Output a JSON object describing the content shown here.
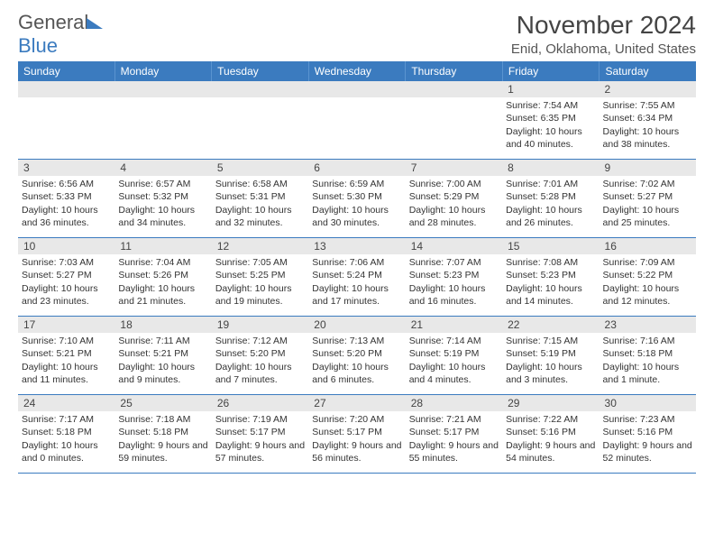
{
  "logo": {
    "part1": "General",
    "part2": "Blue"
  },
  "header": {
    "month": "November 2024",
    "location": "Enid, Oklahoma, United States"
  },
  "weekdays": [
    "Sunday",
    "Monday",
    "Tuesday",
    "Wednesday",
    "Thursday",
    "Friday",
    "Saturday"
  ],
  "colors": {
    "header_bg": "#3b7bbf",
    "daynum_bg": "#e8e8e8",
    "week_divider": "#3b7bbf"
  },
  "weeks": [
    [
      {
        "n": "",
        "sunrise": "",
        "sunset": "",
        "daylight": ""
      },
      {
        "n": "",
        "sunrise": "",
        "sunset": "",
        "daylight": ""
      },
      {
        "n": "",
        "sunrise": "",
        "sunset": "",
        "daylight": ""
      },
      {
        "n": "",
        "sunrise": "",
        "sunset": "",
        "daylight": ""
      },
      {
        "n": "",
        "sunrise": "",
        "sunset": "",
        "daylight": ""
      },
      {
        "n": "1",
        "sunrise": "Sunrise: 7:54 AM",
        "sunset": "Sunset: 6:35 PM",
        "daylight": "Daylight: 10 hours and 40 minutes."
      },
      {
        "n": "2",
        "sunrise": "Sunrise: 7:55 AM",
        "sunset": "Sunset: 6:34 PM",
        "daylight": "Daylight: 10 hours and 38 minutes."
      }
    ],
    [
      {
        "n": "3",
        "sunrise": "Sunrise: 6:56 AM",
        "sunset": "Sunset: 5:33 PM",
        "daylight": "Daylight: 10 hours and 36 minutes."
      },
      {
        "n": "4",
        "sunrise": "Sunrise: 6:57 AM",
        "sunset": "Sunset: 5:32 PM",
        "daylight": "Daylight: 10 hours and 34 minutes."
      },
      {
        "n": "5",
        "sunrise": "Sunrise: 6:58 AM",
        "sunset": "Sunset: 5:31 PM",
        "daylight": "Daylight: 10 hours and 32 minutes."
      },
      {
        "n": "6",
        "sunrise": "Sunrise: 6:59 AM",
        "sunset": "Sunset: 5:30 PM",
        "daylight": "Daylight: 10 hours and 30 minutes."
      },
      {
        "n": "7",
        "sunrise": "Sunrise: 7:00 AM",
        "sunset": "Sunset: 5:29 PM",
        "daylight": "Daylight: 10 hours and 28 minutes."
      },
      {
        "n": "8",
        "sunrise": "Sunrise: 7:01 AM",
        "sunset": "Sunset: 5:28 PM",
        "daylight": "Daylight: 10 hours and 26 minutes."
      },
      {
        "n": "9",
        "sunrise": "Sunrise: 7:02 AM",
        "sunset": "Sunset: 5:27 PM",
        "daylight": "Daylight: 10 hours and 25 minutes."
      }
    ],
    [
      {
        "n": "10",
        "sunrise": "Sunrise: 7:03 AM",
        "sunset": "Sunset: 5:27 PM",
        "daylight": "Daylight: 10 hours and 23 minutes."
      },
      {
        "n": "11",
        "sunrise": "Sunrise: 7:04 AM",
        "sunset": "Sunset: 5:26 PM",
        "daylight": "Daylight: 10 hours and 21 minutes."
      },
      {
        "n": "12",
        "sunrise": "Sunrise: 7:05 AM",
        "sunset": "Sunset: 5:25 PM",
        "daylight": "Daylight: 10 hours and 19 minutes."
      },
      {
        "n": "13",
        "sunrise": "Sunrise: 7:06 AM",
        "sunset": "Sunset: 5:24 PM",
        "daylight": "Daylight: 10 hours and 17 minutes."
      },
      {
        "n": "14",
        "sunrise": "Sunrise: 7:07 AM",
        "sunset": "Sunset: 5:23 PM",
        "daylight": "Daylight: 10 hours and 16 minutes."
      },
      {
        "n": "15",
        "sunrise": "Sunrise: 7:08 AM",
        "sunset": "Sunset: 5:23 PM",
        "daylight": "Daylight: 10 hours and 14 minutes."
      },
      {
        "n": "16",
        "sunrise": "Sunrise: 7:09 AM",
        "sunset": "Sunset: 5:22 PM",
        "daylight": "Daylight: 10 hours and 12 minutes."
      }
    ],
    [
      {
        "n": "17",
        "sunrise": "Sunrise: 7:10 AM",
        "sunset": "Sunset: 5:21 PM",
        "daylight": "Daylight: 10 hours and 11 minutes."
      },
      {
        "n": "18",
        "sunrise": "Sunrise: 7:11 AM",
        "sunset": "Sunset: 5:21 PM",
        "daylight": "Daylight: 10 hours and 9 minutes."
      },
      {
        "n": "19",
        "sunrise": "Sunrise: 7:12 AM",
        "sunset": "Sunset: 5:20 PM",
        "daylight": "Daylight: 10 hours and 7 minutes."
      },
      {
        "n": "20",
        "sunrise": "Sunrise: 7:13 AM",
        "sunset": "Sunset: 5:20 PM",
        "daylight": "Daylight: 10 hours and 6 minutes."
      },
      {
        "n": "21",
        "sunrise": "Sunrise: 7:14 AM",
        "sunset": "Sunset: 5:19 PM",
        "daylight": "Daylight: 10 hours and 4 minutes."
      },
      {
        "n": "22",
        "sunrise": "Sunrise: 7:15 AM",
        "sunset": "Sunset: 5:19 PM",
        "daylight": "Daylight: 10 hours and 3 minutes."
      },
      {
        "n": "23",
        "sunrise": "Sunrise: 7:16 AM",
        "sunset": "Sunset: 5:18 PM",
        "daylight": "Daylight: 10 hours and 1 minute."
      }
    ],
    [
      {
        "n": "24",
        "sunrise": "Sunrise: 7:17 AM",
        "sunset": "Sunset: 5:18 PM",
        "daylight": "Daylight: 10 hours and 0 minutes."
      },
      {
        "n": "25",
        "sunrise": "Sunrise: 7:18 AM",
        "sunset": "Sunset: 5:18 PM",
        "daylight": "Daylight: 9 hours and 59 minutes."
      },
      {
        "n": "26",
        "sunrise": "Sunrise: 7:19 AM",
        "sunset": "Sunset: 5:17 PM",
        "daylight": "Daylight: 9 hours and 57 minutes."
      },
      {
        "n": "27",
        "sunrise": "Sunrise: 7:20 AM",
        "sunset": "Sunset: 5:17 PM",
        "daylight": "Daylight: 9 hours and 56 minutes."
      },
      {
        "n": "28",
        "sunrise": "Sunrise: 7:21 AM",
        "sunset": "Sunset: 5:17 PM",
        "daylight": "Daylight: 9 hours and 55 minutes."
      },
      {
        "n": "29",
        "sunrise": "Sunrise: 7:22 AM",
        "sunset": "Sunset: 5:16 PM",
        "daylight": "Daylight: 9 hours and 54 minutes."
      },
      {
        "n": "30",
        "sunrise": "Sunrise: 7:23 AM",
        "sunset": "Sunset: 5:16 PM",
        "daylight": "Daylight: 9 hours and 52 minutes."
      }
    ]
  ]
}
